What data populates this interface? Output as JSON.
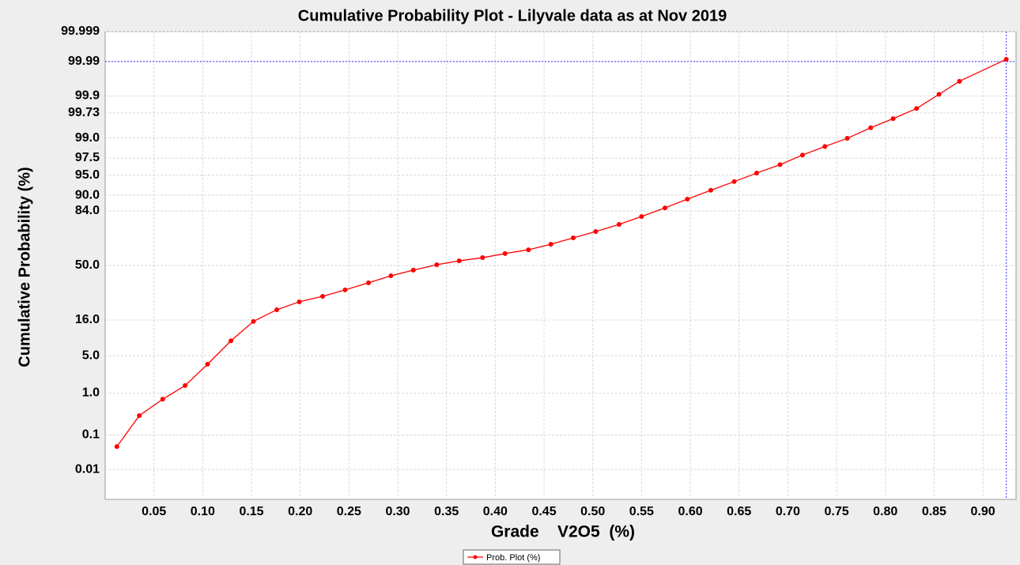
{
  "chart_data": {
    "type": "line",
    "title": "Cumulative Probability Plot  -  Lilyvale data as at Nov 2019",
    "xlabel": "Grade    V2O5  (%)",
    "ylabel": "Cumulative Probability (%)",
    "yscale": "probability",
    "grid": true,
    "legend": "bottom",
    "xlim": [
      0,
      0.934
    ],
    "ylim": [
      0.001,
      99.999
    ],
    "xticks": [
      0.05,
      {
        "value": 0.1,
        "label": "0.10"
      },
      0.15,
      {
        "value": 0.2,
        "label": "0.20"
      },
      0.25,
      {
        "value": 0.3,
        "label": "0.30"
      },
      0.35,
      {
        "value": 0.4,
        "label": "0.40"
      },
      0.45,
      {
        "value": 0.5,
        "label": "0.50"
      },
      0.55,
      {
        "value": 0.6,
        "label": "0.60"
      },
      0.65,
      {
        "value": 0.7,
        "label": "0.70"
      },
      0.75,
      {
        "value": 0.8,
        "label": "0.80"
      },
      0.85,
      {
        "value": 0.9,
        "label": "0.90"
      }
    ],
    "yticks": [
      0.01,
      0.1,
      {
        "value": 1,
        "label": "1.0"
      },
      {
        "value": 5,
        "label": "5.0"
      },
      {
        "value": 16,
        "label": "16.0"
      },
      {
        "value": 50,
        "label": "50.0"
      },
      {
        "value": 84,
        "label": "84.0"
      },
      {
        "value": 90,
        "label": "90.0"
      },
      {
        "value": 95,
        "label": "95.0"
      },
      97.5,
      {
        "value": 99,
        "label": "99.0"
      },
      99.73,
      99.9,
      99.99,
      99.999
    ],
    "crosshair": {
      "x": 0.924,
      "y": 99.99,
      "color": "#3333ff"
    },
    "series": [
      {
        "name": "Prob. Plot (%)",
        "color": "#ff0000",
        "x": [
          0.012,
          0.035,
          0.059,
          0.082,
          0.105,
          0.129,
          0.152,
          0.176,
          0.199,
          0.223,
          0.246,
          0.27,
          0.293,
          0.316,
          0.34,
          0.363,
          0.387,
          0.41,
          0.434,
          0.457,
          0.48,
          0.503,
          0.527,
          0.55,
          0.574,
          0.597,
          0.621,
          0.645,
          0.668,
          0.692,
          0.715,
          0.738,
          0.761,
          0.785,
          0.808,
          0.832,
          0.855,
          0.876,
          0.924
        ],
        "values": [
          0.048,
          0.31,
          0.74,
          1.43,
          3.6,
          8.5,
          15.4,
          21,
          25.4,
          28.7,
          32.8,
          37.6,
          42.6,
          46.6,
          50.6,
          53.4,
          55.7,
          58.6,
          61.3,
          65.1,
          69.3,
          73.2,
          77.3,
          81.4,
          85.3,
          88.7,
          91.5,
          93.7,
          95.4,
          96.7,
          97.8,
          98.5,
          98.98,
          99.4,
          99.63,
          99.79,
          99.91,
          99.961,
          99.9915
        ]
      }
    ]
  }
}
